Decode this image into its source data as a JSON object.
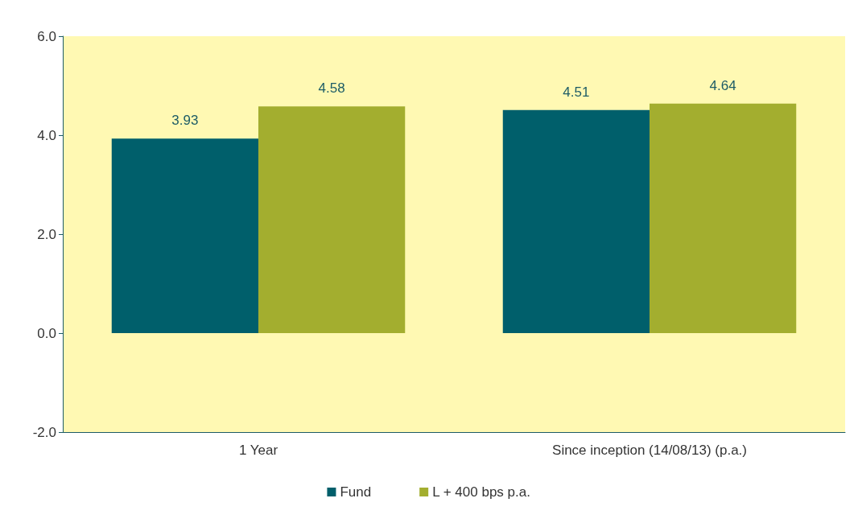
{
  "chart_data": {
    "type": "bar",
    "categories": [
      "1 Year",
      "Since inception (14/08/13) (p.a.)"
    ],
    "series": [
      {
        "name": "Fund",
        "color": "#005f6b",
        "values": [
          3.93,
          4.51
        ]
      },
      {
        "name": "L + 400 bps p.a.",
        "color": "#a3ae2f",
        "values": [
          4.58,
          4.64
        ]
      }
    ],
    "ylim": [
      -2,
      6
    ],
    "yticks": [
      {
        "value": -2,
        "label": "-2.0"
      },
      {
        "value": 0,
        "label": "0.0"
      },
      {
        "value": 2,
        "label": "2.0"
      },
      {
        "value": 4,
        "label": "4.0"
      },
      {
        "value": 6,
        "label": "6.0"
      }
    ],
    "data_labels": true,
    "grid": false,
    "legend": "bottom"
  }
}
